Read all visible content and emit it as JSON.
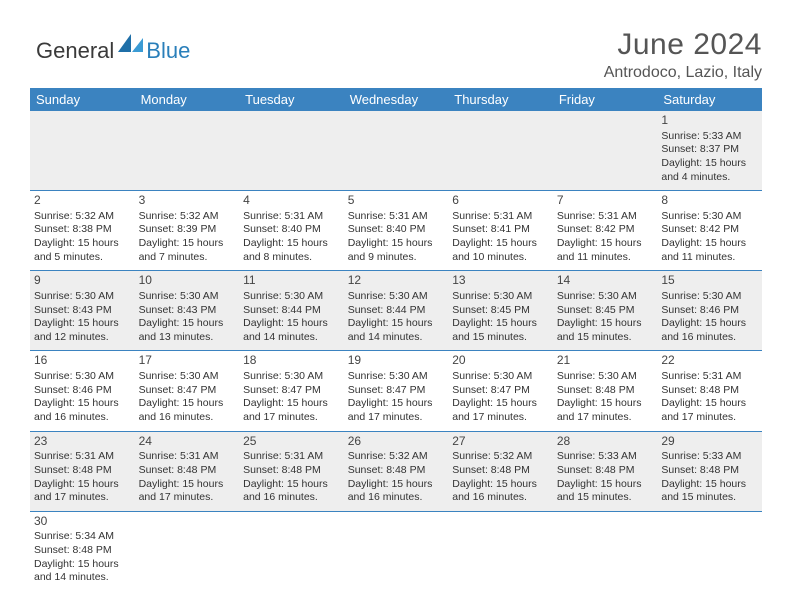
{
  "logo": {
    "text1": "General",
    "text2": "Blue"
  },
  "title": "June 2024",
  "location": "Antrodoco, Lazio, Italy",
  "colors": {
    "header_bg": "#3b83c0",
    "header_fg": "#ffffff",
    "row_alt_bg": "#eeeeee",
    "border": "#3b83c0",
    "text": "#333333",
    "title_color": "#555555"
  },
  "day_headers": [
    "Sunday",
    "Monday",
    "Tuesday",
    "Wednesday",
    "Thursday",
    "Friday",
    "Saturday"
  ],
  "weeks": [
    [
      null,
      null,
      null,
      null,
      null,
      null,
      {
        "n": "1",
        "sr": "5:33 AM",
        "ss": "8:37 PM",
        "dl": "15 hours and 4 minutes."
      }
    ],
    [
      {
        "n": "2",
        "sr": "5:32 AM",
        "ss": "8:38 PM",
        "dl": "15 hours and 5 minutes."
      },
      {
        "n": "3",
        "sr": "5:32 AM",
        "ss": "8:39 PM",
        "dl": "15 hours and 7 minutes."
      },
      {
        "n": "4",
        "sr": "5:31 AM",
        "ss": "8:40 PM",
        "dl": "15 hours and 8 minutes."
      },
      {
        "n": "5",
        "sr": "5:31 AM",
        "ss": "8:40 PM",
        "dl": "15 hours and 9 minutes."
      },
      {
        "n": "6",
        "sr": "5:31 AM",
        "ss": "8:41 PM",
        "dl": "15 hours and 10 minutes."
      },
      {
        "n": "7",
        "sr": "5:31 AM",
        "ss": "8:42 PM",
        "dl": "15 hours and 11 minutes."
      },
      {
        "n": "8",
        "sr": "5:30 AM",
        "ss": "8:42 PM",
        "dl": "15 hours and 11 minutes."
      }
    ],
    [
      {
        "n": "9",
        "sr": "5:30 AM",
        "ss": "8:43 PM",
        "dl": "15 hours and 12 minutes."
      },
      {
        "n": "10",
        "sr": "5:30 AM",
        "ss": "8:43 PM",
        "dl": "15 hours and 13 minutes."
      },
      {
        "n": "11",
        "sr": "5:30 AM",
        "ss": "8:44 PM",
        "dl": "15 hours and 14 minutes."
      },
      {
        "n": "12",
        "sr": "5:30 AM",
        "ss": "8:44 PM",
        "dl": "15 hours and 14 minutes."
      },
      {
        "n": "13",
        "sr": "5:30 AM",
        "ss": "8:45 PM",
        "dl": "15 hours and 15 minutes."
      },
      {
        "n": "14",
        "sr": "5:30 AM",
        "ss": "8:45 PM",
        "dl": "15 hours and 15 minutes."
      },
      {
        "n": "15",
        "sr": "5:30 AM",
        "ss": "8:46 PM",
        "dl": "15 hours and 16 minutes."
      }
    ],
    [
      {
        "n": "16",
        "sr": "5:30 AM",
        "ss": "8:46 PM",
        "dl": "15 hours and 16 minutes."
      },
      {
        "n": "17",
        "sr": "5:30 AM",
        "ss": "8:47 PM",
        "dl": "15 hours and 16 minutes."
      },
      {
        "n": "18",
        "sr": "5:30 AM",
        "ss": "8:47 PM",
        "dl": "15 hours and 17 minutes."
      },
      {
        "n": "19",
        "sr": "5:30 AM",
        "ss": "8:47 PM",
        "dl": "15 hours and 17 minutes."
      },
      {
        "n": "20",
        "sr": "5:30 AM",
        "ss": "8:47 PM",
        "dl": "15 hours and 17 minutes."
      },
      {
        "n": "21",
        "sr": "5:30 AM",
        "ss": "8:48 PM",
        "dl": "15 hours and 17 minutes."
      },
      {
        "n": "22",
        "sr": "5:31 AM",
        "ss": "8:48 PM",
        "dl": "15 hours and 17 minutes."
      }
    ],
    [
      {
        "n": "23",
        "sr": "5:31 AM",
        "ss": "8:48 PM",
        "dl": "15 hours and 17 minutes."
      },
      {
        "n": "24",
        "sr": "5:31 AM",
        "ss": "8:48 PM",
        "dl": "15 hours and 17 minutes."
      },
      {
        "n": "25",
        "sr": "5:31 AM",
        "ss": "8:48 PM",
        "dl": "15 hours and 16 minutes."
      },
      {
        "n": "26",
        "sr": "5:32 AM",
        "ss": "8:48 PM",
        "dl": "15 hours and 16 minutes."
      },
      {
        "n": "27",
        "sr": "5:32 AM",
        "ss": "8:48 PM",
        "dl": "15 hours and 16 minutes."
      },
      {
        "n": "28",
        "sr": "5:33 AM",
        "ss": "8:48 PM",
        "dl": "15 hours and 15 minutes."
      },
      {
        "n": "29",
        "sr": "5:33 AM",
        "ss": "8:48 PM",
        "dl": "15 hours and 15 minutes."
      }
    ],
    [
      {
        "n": "30",
        "sr": "5:34 AM",
        "ss": "8:48 PM",
        "dl": "15 hours and 14 minutes."
      },
      null,
      null,
      null,
      null,
      null,
      null
    ]
  ],
  "labels": {
    "sunrise": "Sunrise:",
    "sunset": "Sunset:",
    "daylight": "Daylight:"
  }
}
